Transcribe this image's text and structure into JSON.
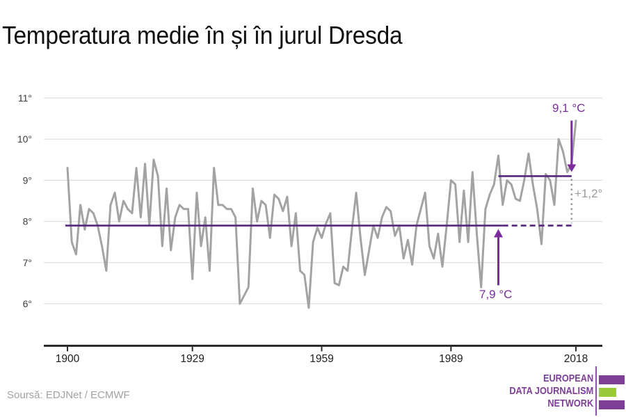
{
  "title": "Temperatura medie în și în jurul Dresda",
  "source": "Soursă: EDJNet / ECMWF",
  "colors": {
    "line_gray": "#a3a3a3",
    "grid_gray": "#dedede",
    "axis_dark": "#2b2b2b",
    "xtick_label": "#1d1d1d",
    "ytick_label": "#3d3d3d",
    "mean_line_purple": "#56257f",
    "annotation_purple": "#7b2d9e",
    "muted_gray": "#9b9b9b"
  },
  "chart_data": {
    "type": "line",
    "title": "Temperatura medie în și în jurul Dresda",
    "xlabel": "",
    "ylabel": "",
    "grid": "horizontal",
    "xlim": [
      1899.5,
      2018.5
    ],
    "ylim": [
      5.6,
      11.2
    ],
    "xticks": [
      1900,
      1929,
      1959,
      1989,
      2018
    ],
    "xtick_labels": [
      "1900",
      "1929",
      "1959",
      "1989",
      "2018"
    ],
    "yticks": [
      6,
      7,
      8,
      9,
      10,
      11
    ],
    "ytick_labels": [
      "6°",
      "7°",
      "8°",
      "9°",
      "10°",
      "11°"
    ],
    "years": [
      1900,
      1901,
      1902,
      1903,
      1904,
      1905,
      1906,
      1907,
      1908,
      1909,
      1910,
      1911,
      1912,
      1913,
      1914,
      1915,
      1916,
      1917,
      1918,
      1919,
      1920,
      1921,
      1922,
      1923,
      1924,
      1925,
      1926,
      1927,
      1928,
      1929,
      1930,
      1931,
      1932,
      1933,
      1934,
      1935,
      1936,
      1937,
      1938,
      1939,
      1940,
      1941,
      1942,
      1943,
      1944,
      1945,
      1946,
      1947,
      1948,
      1949,
      1950,
      1951,
      1952,
      1953,
      1954,
      1955,
      1956,
      1957,
      1958,
      1959,
      1960,
      1961,
      1962,
      1963,
      1964,
      1965,
      1966,
      1967,
      1968,
      1969,
      1970,
      1971,
      1972,
      1973,
      1974,
      1975,
      1976,
      1977,
      1978,
      1979,
      1980,
      1981,
      1982,
      1983,
      1984,
      1985,
      1986,
      1987,
      1988,
      1989,
      1990,
      1991,
      1992,
      1993,
      1994,
      1995,
      1996,
      1997,
      1998,
      1999,
      2000,
      2001,
      2002,
      2003,
      2004,
      2005,
      2006,
      2007,
      2008,
      2009,
      2010,
      2011,
      2012,
      2013,
      2014,
      2015,
      2016,
      2017,
      2018
    ],
    "values": [
      9.3,
      7.5,
      7.2,
      8.4,
      7.8,
      8.3,
      8.2,
      7.9,
      7.4,
      6.8,
      8.4,
      8.7,
      8.0,
      8.5,
      8.3,
      8.2,
      9.3,
      8.1,
      9.4,
      7.9,
      9.5,
      9.1,
      7.4,
      8.8,
      7.3,
      8.1,
      8.4,
      8.3,
      8.3,
      6.6,
      8.7,
      7.4,
      8.1,
      6.8,
      9.3,
      8.4,
      8.4,
      8.3,
      8.3,
      8.1,
      6.0,
      6.2,
      6.4,
      8.8,
      8.0,
      8.5,
      8.4,
      7.6,
      8.65,
      8.55,
      8.25,
      8.6,
      7.4,
      8.2,
      6.8,
      6.7,
      5.9,
      7.5,
      7.85,
      7.6,
      7.95,
      8.2,
      6.5,
      6.45,
      6.9,
      6.8,
      7.8,
      8.7,
      7.6,
      6.7,
      7.3,
      7.9,
      7.6,
      8.1,
      8.35,
      8.25,
      7.65,
      7.9,
      7.1,
      7.55,
      6.95,
      7.9,
      8.3,
      8.7,
      7.4,
      7.1,
      7.7,
      6.9,
      7.9,
      9.0,
      8.9,
      7.5,
      8.75,
      7.5,
      9.2,
      7.7,
      6.4,
      8.3,
      8.65,
      8.9,
      9.6,
      8.4,
      9.0,
      8.9,
      8.55,
      8.5,
      9.0,
      9.65,
      8.9,
      8.3,
      7.45,
      9.15,
      9.0,
      8.4,
      10.0,
      9.7,
      9.2,
      9.4,
      10.45
    ],
    "mean_lines": [
      {
        "label": "7,9 °C",
        "value": 7.9,
        "from_year": 1899.5,
        "to_year": 2001,
        "dashed_to_year": 2017
      },
      {
        "label": "9,1 °C",
        "value": 9.1,
        "from_year": 2000,
        "to_year": 2017
      }
    ],
    "connector": {
      "year": 2017,
      "from_value": 9.1,
      "to_value": 7.9
    },
    "annotations": [
      {
        "text": "9,1 °C",
        "role": "recent-average-label",
        "arrow": {
          "year": 2017,
          "to_value": 9.1,
          "direction": "down"
        }
      },
      {
        "text": "7,9 °C",
        "role": "historic-average-label",
        "arrow": {
          "year": 2000,
          "to_value": 7.9,
          "direction": "up"
        }
      },
      {
        "text": "+1,2°",
        "role": "difference-label"
      }
    ]
  },
  "logo": {
    "line1": "EUROPEAN",
    "line2": "DATA JOURNALISM",
    "line3": "NETWORK"
  }
}
